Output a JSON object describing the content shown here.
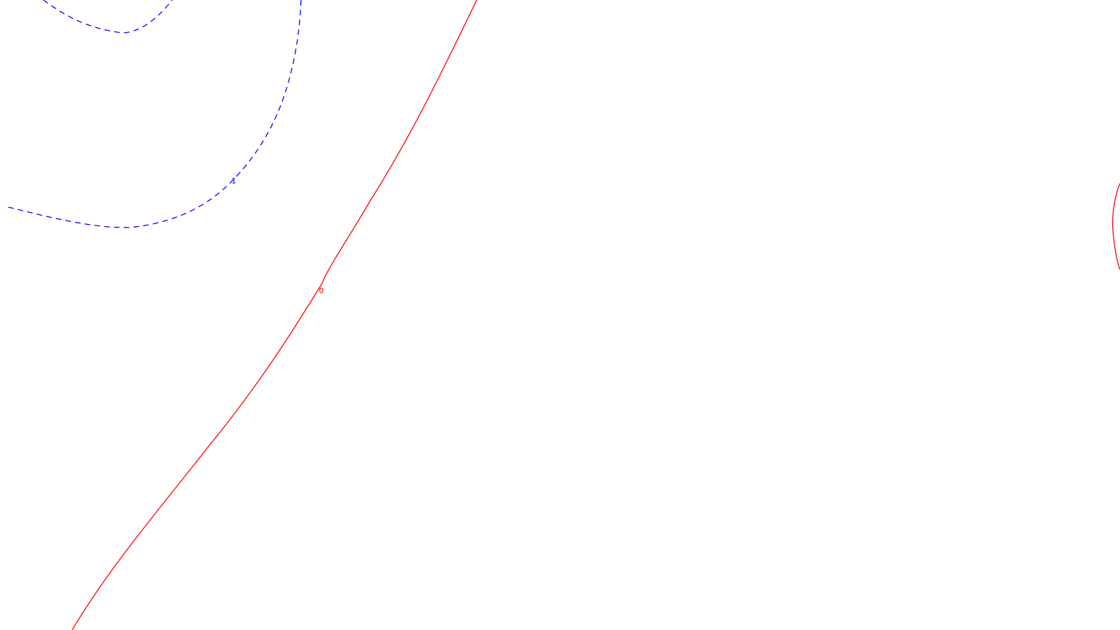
{
  "map": {
    "background": "#ffffff",
    "contours": [
      {
        "id": "contour-1",
        "level_label": "1",
        "color": "#0000ff",
        "style": "dashed"
      },
      {
        "id": "contour-0",
        "level_label": "0",
        "color": "#ff0000",
        "style": "solid"
      }
    ]
  }
}
